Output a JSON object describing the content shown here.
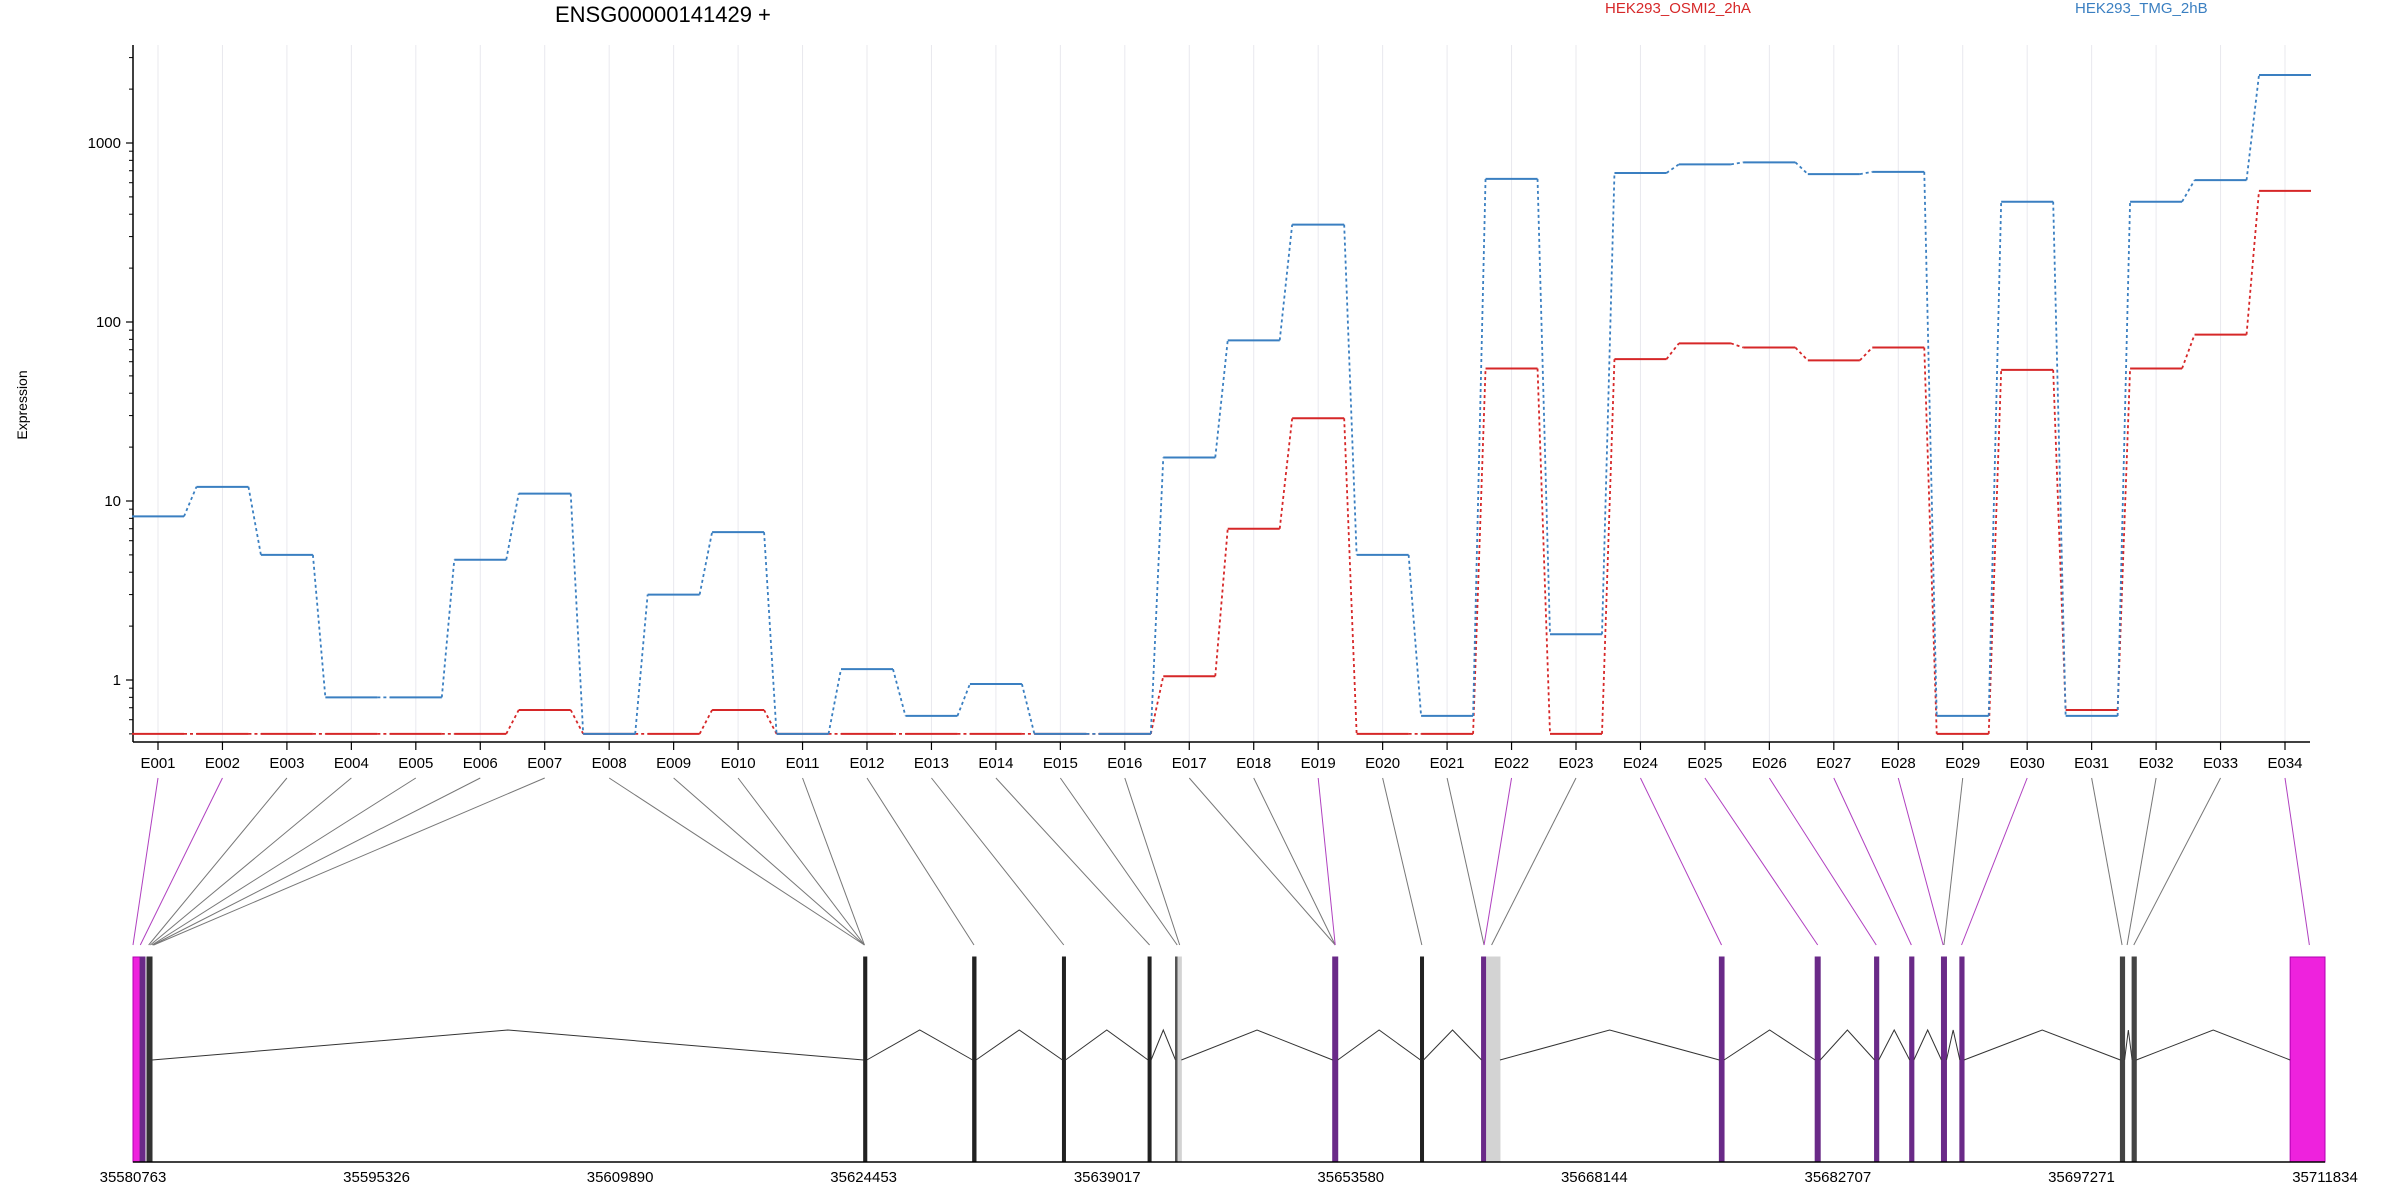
{
  "chart_data": {
    "type": "line",
    "title": "ENSG00000141429 +",
    "ylabel": "Expression",
    "yscale": "log",
    "yticks": [
      "1",
      "10",
      "100",
      "1000"
    ],
    "ytick_values": [
      1,
      10,
      100,
      1000
    ],
    "ylim": [
      0.5,
      3000
    ],
    "categories": [
      "E001",
      "E002",
      "E003",
      "E004",
      "E005",
      "E006",
      "E007",
      "E008",
      "E009",
      "E010",
      "E011",
      "E012",
      "E013",
      "E014",
      "E015",
      "E016",
      "E017",
      "E018",
      "E019",
      "E020",
      "E021",
      "E022",
      "E023",
      "E024",
      "E025",
      "E026",
      "E027",
      "E028",
      "E029",
      "E030",
      "E031",
      "E032",
      "E033",
      "E034"
    ],
    "series": [
      {
        "name": "HEK293_OSMI2_2hA",
        "color": "#d62728",
        "values": [
          0.5,
          0.5,
          0.5,
          0.5,
          0.5,
          0.5,
          0.68,
          0.5,
          0.5,
          0.68,
          0.5,
          0.5,
          0.5,
          0.5,
          0.5,
          0.5,
          1.05,
          7,
          29,
          0.5,
          0.5,
          55,
          0.5,
          62,
          76,
          72,
          61,
          72,
          0.5,
          54,
          0.68,
          55,
          85,
          540
        ]
      },
      {
        "name": "HEK293_TMG_2hB",
        "color": "#3a7fc1",
        "values": [
          8.2,
          12,
          5,
          0.8,
          0.8,
          4.7,
          11,
          0.5,
          3,
          6.7,
          0.5,
          1.15,
          0.63,
          0.95,
          0.5,
          0.5,
          17.5,
          79,
          350,
          5,
          0.63,
          630,
          1.8,
          680,
          760,
          780,
          670,
          690,
          0.63,
          470,
          0.63,
          470,
          620,
          2400
        ]
      }
    ],
    "gene_model": {
      "coordinate_ticks": [
        "35580763",
        "35595326",
        "35609890",
        "35624453",
        "35639017",
        "35653580",
        "35668144",
        "35682707",
        "35697271",
        "35711834"
      ],
      "coordinate_values": [
        35580763,
        35595326,
        35609890,
        35624453,
        35639017,
        35653580,
        35668144,
        35682707,
        35697271,
        35711834
      ],
      "exon_color": "#ee22dd",
      "exon_dark_color": "#6a2a88",
      "untested_color": "#d3d3d3"
    }
  }
}
